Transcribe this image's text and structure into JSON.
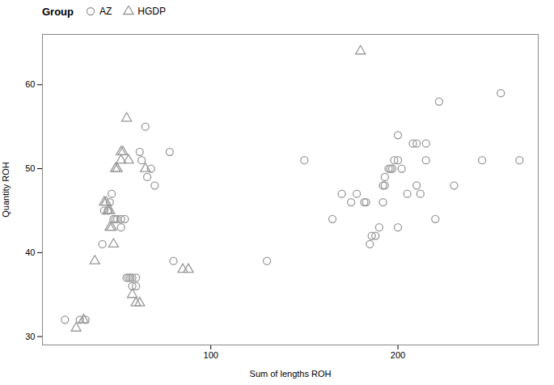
{
  "chart_data": {
    "type": "scatter",
    "xlabel": "Sum of lengths ROH",
    "ylabel": "Quantity ROH",
    "legend_title": "Group",
    "legend": "upper left",
    "xlim": [
      10,
      275
    ],
    "ylim": [
      29,
      66
    ],
    "xticks": [
      100,
      200
    ],
    "yticks": [
      30,
      40,
      50,
      60
    ],
    "series": [
      {
        "name": "AZ",
        "color": "#999999",
        "marker": "circle",
        "x": [
          22,
          30,
          33,
          42,
          43,
          45,
          46,
          47,
          48,
          49,
          50,
          52,
          52,
          54,
          55,
          56,
          57,
          58,
          58,
          60,
          60,
          62,
          63,
          65,
          66,
          68,
          70,
          78,
          80,
          130,
          150,
          165,
          170,
          175,
          178,
          182,
          183,
          185,
          186,
          188,
          190,
          192,
          192,
          193,
          193,
          195,
          196,
          197,
          198,
          200,
          200,
          200,
          202,
          205,
          208,
          210,
          210,
          212,
          215,
          215,
          220,
          222,
          230,
          245,
          255,
          265
        ],
        "values": [
          32,
          32,
          32,
          41,
          45,
          45,
          46,
          47,
          44,
          44,
          44,
          44,
          43,
          44,
          37,
          37,
          37,
          37,
          36,
          37,
          36,
          52,
          51,
          55,
          49,
          50,
          48,
          52,
          39,
          39,
          51,
          44,
          47,
          46,
          47,
          46,
          46,
          41,
          42,
          42,
          43,
          46,
          48,
          48,
          49,
          50,
          50,
          50,
          51,
          51,
          43,
          54,
          50,
          47,
          53,
          48,
          53,
          47,
          53,
          51,
          44,
          58,
          48,
          51,
          59,
          51
        ]
      },
      {
        "name": "HGDP",
        "color": "#999999",
        "marker": "triangle",
        "x": [
          28,
          32,
          38,
          43,
          44,
          45,
          46,
          46,
          47,
          48,
          49,
          50,
          52,
          52,
          53,
          55,
          56,
          58,
          60,
          62,
          65,
          85,
          88,
          180
        ],
        "values": [
          31,
          32,
          39,
          46,
          46,
          45,
          45,
          43,
          43,
          41,
          50,
          50,
          51,
          52,
          52,
          56,
          51,
          35,
          34,
          34,
          50,
          38,
          38,
          64
        ]
      }
    ]
  }
}
